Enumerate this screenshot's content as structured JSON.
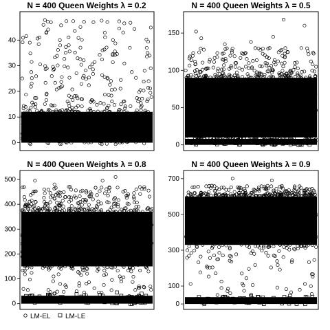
{
  "chart_data": [
    {
      "type": "scatter",
      "title": "N = 400  Queen  Weights  λ = 0.2",
      "xlabel": "",
      "ylabel": "",
      "ylim": [
        -2,
        50
      ],
      "yticks": [
        "0",
        "10",
        "20",
        "30",
        "40"
      ],
      "grid": false,
      "series": [
        {
          "label_key": "lm_el",
          "marker": "circle",
          "band": [
            0,
            12
          ],
          "sparse_max": 48,
          "outliers": [
            [
              0.55,
              47
            ],
            [
              0.06,
              39
            ],
            [
              0.7,
              40
            ],
            [
              0.36,
              38
            ],
            [
              0.83,
              37
            ],
            [
              0.96,
              37
            ],
            [
              0.62,
              36
            ]
          ]
        },
        {
          "label_key": "lm_le",
          "marker": "square",
          "band": [
            0,
            0
          ],
          "sparse_max": 0,
          "outliers": []
        }
      ]
    },
    {
      "type": "scatter",
      "title": "N = 400  Queen  Weights  λ = 0.5",
      "xlabel": "",
      "ylabel": "",
      "ylim": [
        -4,
        175
      ],
      "yticks": [
        "0",
        "50",
        "100",
        "150"
      ],
      "grid": false,
      "series": [
        {
          "label_key": "lm_el",
          "marker": "circle",
          "band": [
            10,
            90
          ],
          "sparse_max": 130,
          "outliers": [
            [
              0.75,
              168
            ],
            [
              0.08,
              152
            ],
            [
              0.12,
              143
            ],
            [
              0.67,
              145
            ],
            [
              0.91,
              160
            ],
            [
              0.5,
              138
            ],
            [
              0.3,
              135
            ]
          ]
        },
        {
          "label_key": "lm_le",
          "marker": "square",
          "band": [
            0,
            8
          ],
          "sparse_max": 0,
          "outliers": []
        }
      ]
    },
    {
      "type": "scatter",
      "title": "N = 400  Queen  Weights  λ = 0.8",
      "xlabel": "",
      "ylabel": "",
      "ylim": [
        -12,
        525
      ],
      "yticks": [
        "0",
        "100",
        "200",
        "300",
        "400",
        "500"
      ],
      "grid": false,
      "series": [
        {
          "label_key": "lm_el",
          "marker": "circle",
          "band": [
            150,
            370
          ],
          "sparse_max": 470,
          "outliers": [
            [
              0.72,
              510
            ],
            [
              0.1,
              495
            ],
            [
              0.62,
              495
            ],
            [
              0.44,
              72
            ],
            [
              0.36,
              470
            ],
            [
              0.88,
              460
            ],
            [
              0.25,
              480
            ]
          ]
        },
        {
          "label_key": "lm_le",
          "marker": "square",
          "band": [
            0,
            32
          ],
          "sparse_max": 0,
          "outliers": [
            [
              0.73,
              45
            ],
            [
              0.92,
              40
            ],
            [
              0.6,
              35
            ],
            [
              0.42,
              38
            ],
            [
              0.2,
              36
            ]
          ]
        }
      ]
    },
    {
      "type": "scatter",
      "title": "N = 400  Queen  Weights  λ = 0.9",
      "xlabel": "",
      "ylabel": "",
      "ylim": [
        -15,
        730
      ],
      "yticks": [
        "0",
        "100",
        "300",
        "500",
        "700"
      ],
      "grid": false,
      "series": [
        {
          "label_key": "lm_el",
          "marker": "circle",
          "band": [
            330,
            600
          ],
          "sparse_max": 660,
          "outliers": [
            [
              0.43,
              170
            ],
            [
              0.66,
              690
            ],
            [
              0.56,
              650
            ],
            [
              0.36,
              700
            ],
            [
              0.2,
              660
            ],
            [
              0.95,
              640
            ],
            [
              0.25,
              250
            ]
          ]
        },
        {
          "label_key": "lm_le",
          "marker": "square",
          "band": [
            0,
            38
          ],
          "sparse_max": 0,
          "outliers": [
            [
              0.8,
              45
            ],
            [
              0.5,
              42
            ],
            [
              0.3,
              40
            ]
          ]
        }
      ]
    }
  ],
  "legend": {
    "lm_el": "LM-EL",
    "lm_le": "LM-LE",
    "placement": "bottom-left"
  }
}
